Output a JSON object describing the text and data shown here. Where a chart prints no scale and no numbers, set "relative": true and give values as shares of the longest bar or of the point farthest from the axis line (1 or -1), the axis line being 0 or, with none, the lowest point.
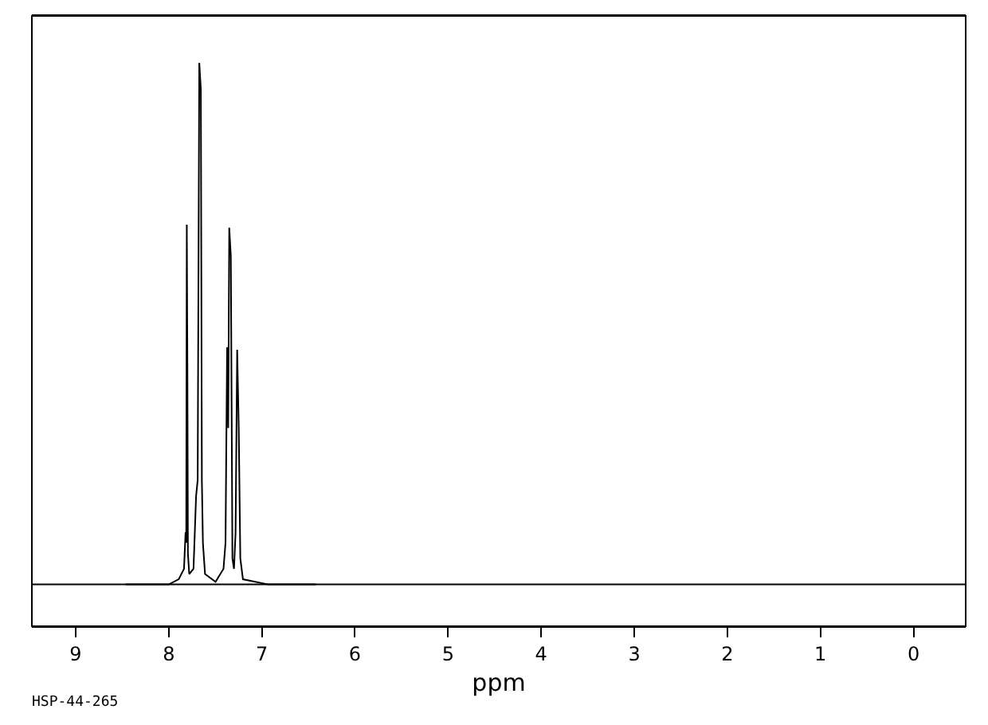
{
  "chart_data": {
    "type": "line",
    "relative": true,
    "xlabel": "ppm",
    "color": "#000000",
    "xlim": [
      9.47,
      -0.56
    ],
    "xticks": [
      9,
      8,
      7,
      6,
      5,
      4,
      3,
      2,
      1,
      0
    ],
    "x": [
      8.46,
      8.2,
      8.0,
      7.893,
      7.836,
      7.819,
      7.812,
      7.806,
      7.8,
      7.794,
      7.78,
      7.734,
      7.706,
      7.689,
      7.672,
      7.655,
      7.644,
      7.633,
      7.61,
      7.497,
      7.412,
      7.39,
      7.373,
      7.361,
      7.35,
      7.333,
      7.316,
      7.299,
      7.282,
      7.265,
      7.248,
      7.231,
      7.203,
      6.93,
      6.7,
      6.42
    ],
    "values": [
      0,
      0,
      0,
      0.01,
      0.03,
      0.1,
      0.08,
      0.69,
      0.44,
      0.06,
      0.02,
      0.03,
      0.17,
      0.2,
      1.0,
      0.95,
      0.2,
      0.08,
      0.02,
      0.005,
      0.03,
      0.08,
      0.455,
      0.3,
      0.684,
      0.63,
      0.05,
      0.03,
      0.1,
      0.45,
      0.3,
      0.05,
      0.01,
      0,
      0,
      0
    ],
    "ref_lines": [
      {
        "axis": "y",
        "value": 0,
        "color": "#000000"
      }
    ],
    "annotations": [
      "HSP-44-265"
    ],
    "marker": "none",
    "line_style": "solid"
  }
}
